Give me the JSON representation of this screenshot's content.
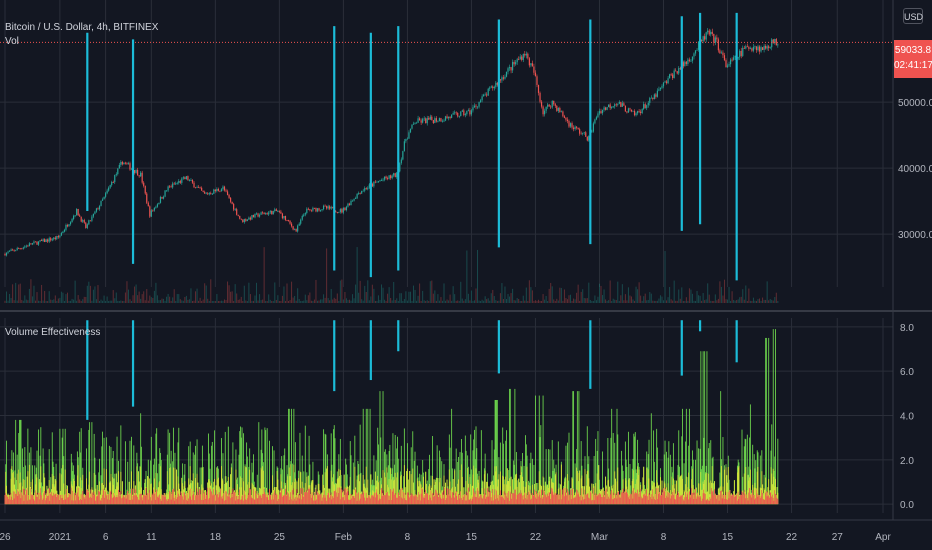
{
  "header": {
    "symbol_title": "Bitcoin / U.S. Dollar, 4h, BITFINEX",
    "volume_label": "Vol",
    "currency": "USD",
    "last_price": "59033.8",
    "countdown": "02:41:17"
  },
  "indicator": {
    "title": "Volume Effectiveness"
  },
  "colors": {
    "background": "#131722",
    "grid": "#2a2e39",
    "up_candle": "#26a69a",
    "down_candle": "#ef5350",
    "signal_line": "#1cbcd8",
    "price_line": "#ef5350",
    "hist_red": "#ef5350",
    "hist_yellow": "#d4e43a",
    "hist_green": "#6bd04c"
  },
  "chart_data": [
    {
      "type": "candlestick",
      "title": "Bitcoin / U.S. Dollar, 4h, BITFINEX",
      "ylim": [
        22000,
        65000
      ],
      "y_ticks": [
        "30000.0",
        "40000.0",
        "50000.0"
      ],
      "y_tick_values": [
        30000,
        40000,
        50000
      ],
      "last_price": 59033.8,
      "price_path": [
        [
          "2020-12-26",
          27000
        ],
        [
          "2020-12-29",
          28500
        ],
        [
          "2021-01-01",
          29500
        ],
        [
          "2021-01-03",
          33500
        ],
        [
          "2021-01-04",
          31000
        ],
        [
          "2021-01-06",
          35500
        ],
        [
          "2021-01-08",
          41000
        ],
        [
          "2021-01-10",
          39000
        ],
        [
          "2021-01-11",
          33000
        ],
        [
          "2021-01-13",
          37000
        ],
        [
          "2021-01-15",
          38500
        ],
        [
          "2021-01-17",
          36000
        ],
        [
          "2021-01-19",
          37000
        ],
        [
          "2021-01-21",
          32000
        ],
        [
          "2021-01-23",
          33000
        ],
        [
          "2021-01-25",
          33500
        ],
        [
          "2021-01-27",
          30500
        ],
        [
          "2021-01-28",
          33500
        ],
        [
          "2021-01-30",
          34000
        ],
        [
          "2021-02-01",
          33500
        ],
        [
          "2021-02-03",
          36500
        ],
        [
          "2021-02-05",
          38000
        ],
        [
          "2021-02-07",
          39000
        ],
        [
          "2021-02-08",
          44500
        ],
        [
          "2021-02-09",
          47000
        ],
        [
          "2021-02-12",
          47500
        ],
        [
          "2021-02-15",
          48500
        ],
        [
          "2021-02-17",
          51500
        ],
        [
          "2021-02-19",
          54500
        ],
        [
          "2021-02-21",
          57500
        ],
        [
          "2021-02-22",
          54500
        ],
        [
          "2021-02-23",
          48500
        ],
        [
          "2021-02-24",
          50000
        ],
        [
          "2021-02-26",
          46500
        ],
        [
          "2021-02-28",
          44500
        ],
        [
          "2021-03-01",
          48500
        ],
        [
          "2021-03-03",
          50000
        ],
        [
          "2021-03-05",
          48000
        ],
        [
          "2021-03-07",
          50500
        ],
        [
          "2021-03-09",
          54000
        ],
        [
          "2021-03-11",
          56500
        ],
        [
          "2021-03-13",
          60500
        ],
        [
          "2021-03-14",
          59000
        ],
        [
          "2021-03-15",
          55500
        ],
        [
          "2021-03-16",
          56500
        ],
        [
          "2021-03-17",
          58000
        ],
        [
          "2021-03-18",
          58500
        ],
        [
          "2021-03-19",
          58000
        ],
        [
          "2021-03-20",
          59033.8
        ]
      ],
      "signals": [
        {
          "date": "2021-01-04",
          "y_top": 60500,
          "y_bottom": 33500
        },
        {
          "date": "2021-01-09",
          "y_top": 59500,
          "y_bottom": 25500
        },
        {
          "date": "2021-01-31",
          "y_top": 61500,
          "y_bottom": 24500
        },
        {
          "date": "2021-02-04",
          "y_top": 60500,
          "y_bottom": 23500
        },
        {
          "date": "2021-02-07",
          "y_top": 61500,
          "y_bottom": 24500
        },
        {
          "date": "2021-02-18",
          "y_top": 62500,
          "y_bottom": 28000
        },
        {
          "date": "2021-02-28",
          "y_top": 62500,
          "y_bottom": 28500
        },
        {
          "date": "2021-03-10",
          "y_top": 63000,
          "y_bottom": 30500
        },
        {
          "date": "2021-03-12",
          "y_top": 63500,
          "y_bottom": 31500
        },
        {
          "date": "2021-03-16",
          "y_top": 63500,
          "y_bottom": 23000
        }
      ]
    },
    {
      "type": "bar",
      "title": "Volume Effectiveness",
      "ylim": [
        -0.4,
        8.4
      ],
      "y_ticks": [
        "0.0",
        "2.0",
        "4.0",
        "6.0",
        "8.0"
      ],
      "y_tick_values": [
        0,
        2,
        4,
        6,
        8
      ],
      "series": [
        {
          "color": "#ef5350",
          "typical": 0.6
        },
        {
          "color": "#d4e43a",
          "typical": 1.2
        },
        {
          "color": "#6bd04c",
          "typical": 2.0
        }
      ],
      "peaks": [
        [
          "2020-12-26",
          1.8
        ],
        [
          "2020-12-27",
          3.8
        ],
        [
          "2021-01-01",
          3.4
        ],
        [
          "2021-01-04",
          3.7
        ],
        [
          "2021-01-09",
          4.1
        ],
        [
          "2021-01-15",
          3.4
        ],
        [
          "2021-01-22",
          3.7
        ],
        [
          "2021-01-26",
          4.3
        ],
        [
          "2021-01-31",
          5.2
        ],
        [
          "2021-02-03",
          4.3
        ],
        [
          "2021-02-05",
          5.1
        ],
        [
          "2021-02-08",
          6.0
        ],
        [
          "2021-02-12",
          4.3
        ],
        [
          "2021-02-17",
          4.7
        ],
        [
          "2021-02-19",
          5.2
        ],
        [
          "2021-02-22",
          4.9
        ],
        [
          "2021-02-26",
          5.1
        ],
        [
          "2021-03-02",
          4.3
        ],
        [
          "2021-03-06",
          4.1
        ],
        [
          "2021-03-10",
          4.3
        ],
        [
          "2021-03-12",
          6.9
        ],
        [
          "2021-03-14",
          5.1
        ],
        [
          "2021-03-17",
          4.5
        ],
        [
          "2021-03-19",
          7.5
        ],
        [
          "2021-03-20",
          7.9
        ]
      ],
      "signals": [
        {
          "date": "2021-01-04",
          "y_top": 8.3,
          "y_bottom": 3.8
        },
        {
          "date": "2021-01-09",
          "y_top": 8.3,
          "y_bottom": 4.4
        },
        {
          "date": "2021-01-31",
          "y_top": 8.3,
          "y_bottom": 5.1
        },
        {
          "date": "2021-02-04",
          "y_top": 8.3,
          "y_bottom": 5.6
        },
        {
          "date": "2021-02-07",
          "y_top": 8.3,
          "y_bottom": 6.9
        },
        {
          "date": "2021-02-18",
          "y_top": 8.3,
          "y_bottom": 5.9
        },
        {
          "date": "2021-02-28",
          "y_top": 8.3,
          "y_bottom": 5.2
        },
        {
          "date": "2021-03-10",
          "y_top": 8.3,
          "y_bottom": 5.8
        },
        {
          "date": "2021-03-12",
          "y_top": 8.3,
          "y_bottom": 7.8
        },
        {
          "date": "2021-03-16",
          "y_top": 8.3,
          "y_bottom": 6.4
        }
      ]
    }
  ],
  "x_axis": {
    "start_date": "2020-12-26",
    "end_date": "2021-04-01",
    "data_end_date": "2021-03-20",
    "ticks": [
      {
        "label": "26",
        "date": "2020-12-26"
      },
      {
        "label": "2021",
        "date": "2021-01-01"
      },
      {
        "label": "6",
        "date": "2021-01-06"
      },
      {
        "label": "11",
        "date": "2021-01-11"
      },
      {
        "label": "18",
        "date": "2021-01-18"
      },
      {
        "label": "25",
        "date": "2021-01-25"
      },
      {
        "label": "Feb",
        "date": "2021-02-01"
      },
      {
        "label": "8",
        "date": "2021-02-08"
      },
      {
        "label": "15",
        "date": "2021-02-15"
      },
      {
        "label": "22",
        "date": "2021-02-22"
      },
      {
        "label": "Mar",
        "date": "2021-03-01"
      },
      {
        "label": "8",
        "date": "2021-03-08"
      },
      {
        "label": "15",
        "date": "2021-03-15"
      },
      {
        "label": "22",
        "date": "2021-03-22"
      },
      {
        "label": "27",
        "date": "2021-03-27"
      },
      {
        "label": "Apr",
        "date": "2021-04-01"
      }
    ]
  }
}
